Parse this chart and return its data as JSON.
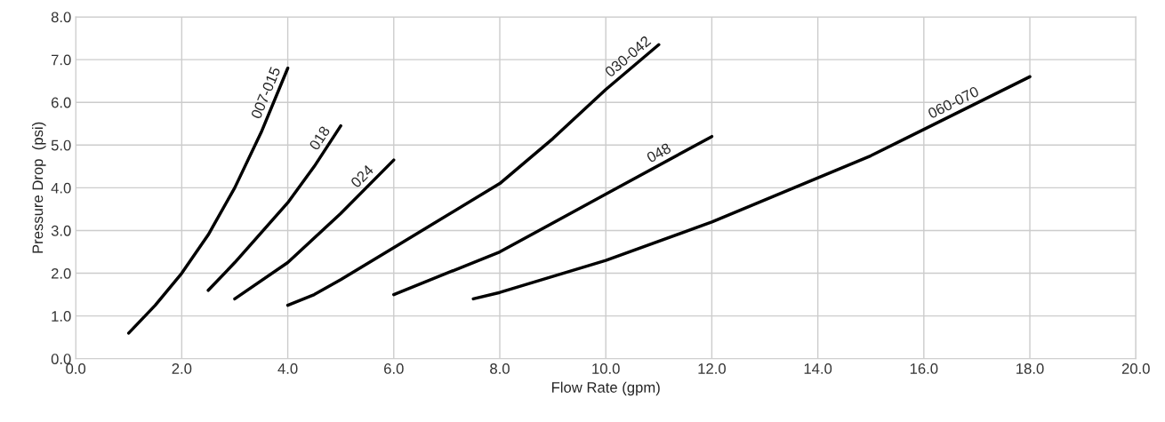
{
  "chart_data": {
    "type": "line",
    "xlabel": "Flow Rate (gpm)",
    "ylabel": "Pressure Drop  (psi)",
    "xlim": [
      0,
      20
    ],
    "ylim": [
      0,
      8
    ],
    "xticks": [
      {
        "value": 0,
        "label": "0.0"
      },
      {
        "value": 2,
        "label": "2.0"
      },
      {
        "value": 4,
        "label": "4.0"
      },
      {
        "value": 6,
        "label": "6.0"
      },
      {
        "value": 8,
        "label": "8.0"
      },
      {
        "value": 10,
        "label": "10.0"
      },
      {
        "value": 12,
        "label": "12.0"
      },
      {
        "value": 14,
        "label": "14.0"
      },
      {
        "value": 16,
        "label": "16.0"
      },
      {
        "value": 18,
        "label": "18.0"
      },
      {
        "value": 20,
        "label": "20.0"
      }
    ],
    "yticks": [
      {
        "value": 0,
        "label": "0.0"
      },
      {
        "value": 1,
        "label": "1.0"
      },
      {
        "value": 2,
        "label": "2.0"
      },
      {
        "value": 3,
        "label": "3.0"
      },
      {
        "value": 4,
        "label": "4.0"
      },
      {
        "value": 5,
        "label": "5.0"
      },
      {
        "value": 6,
        "label": "6.0"
      },
      {
        "value": 7,
        "label": "7.0"
      },
      {
        "value": 8,
        "label": "8.0"
      }
    ],
    "grid": true,
    "legend": false,
    "line_style": "solid",
    "marker": "none",
    "series": [
      {
        "name": "007-015",
        "color": "#000000",
        "x": [
          1.0,
          1.5,
          2.0,
          2.5,
          3.0,
          3.5,
          4.0
        ],
        "values": [
          0.6,
          1.25,
          2.0,
          2.9,
          4.0,
          5.3,
          6.8
        ]
      },
      {
        "name": "018",
        "color": "#000000",
        "x": [
          2.5,
          3.0,
          4.0,
          4.5,
          5.0
        ],
        "values": [
          1.6,
          2.25,
          3.65,
          4.5,
          5.45
        ]
      },
      {
        "name": "024",
        "color": "#000000",
        "x": [
          3.0,
          4.0,
          5.0,
          6.0
        ],
        "values": [
          1.4,
          2.25,
          3.4,
          4.65
        ]
      },
      {
        "name": "030-042",
        "color": "#000000",
        "x": [
          4.0,
          4.5,
          5.0,
          6.0,
          8.0,
          9.0,
          10.0,
          11.0
        ],
        "values": [
          1.25,
          1.5,
          1.85,
          2.6,
          4.1,
          5.15,
          6.3,
          7.35
        ]
      },
      {
        "name": "048",
        "color": "#000000",
        "x": [
          6.0,
          8.0,
          10.0,
          12.0
        ],
        "values": [
          1.5,
          2.5,
          3.85,
          5.2
        ]
      },
      {
        "name": "060-070",
        "color": "#000000",
        "x": [
          7.5,
          8.0,
          10.0,
          12.0,
          15.0,
          18.0
        ],
        "values": [
          1.4,
          1.55,
          2.3,
          3.2,
          4.75,
          6.6
        ]
      }
    ]
  }
}
